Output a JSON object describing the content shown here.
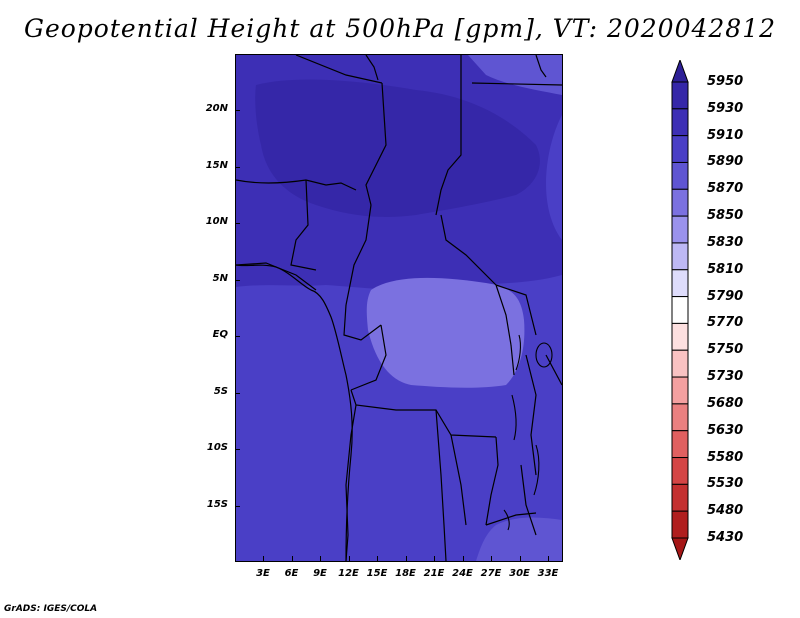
{
  "title": "Geopotential Height at 500hPa [gpm], VT: 2020042812",
  "footer": "GrADS: IGES/COLA",
  "y_axis_labels": [
    "20N",
    "15N",
    "10N",
    "5N",
    "EQ",
    "5S",
    "10S",
    "15S"
  ],
  "x_axis_labels": [
    "3E",
    "6E",
    "9E",
    "12E",
    "15E",
    "18E",
    "21E",
    "24E",
    "27E",
    "30E",
    "33E"
  ],
  "colorbar": {
    "levels": [
      "5950",
      "5930",
      "5910",
      "5890",
      "5870",
      "5850",
      "5830",
      "5810",
      "5790",
      "5770",
      "5750",
      "5730",
      "5680",
      "5630",
      "5580",
      "5530",
      "5480",
      "5430"
    ],
    "colors": [
      "#2d1f96",
      "#3527a8",
      "#3d2fb5",
      "#4a3fc6",
      "#5f55d2",
      "#7b71e0",
      "#9a92ec",
      "#bdb8f4",
      "#dedcfb",
      "#ffffff",
      "#fde0e0",
      "#f9c2c2",
      "#f4a0a0",
      "#ea8080",
      "#e06060",
      "#d44545",
      "#c43030",
      "#b01e1e",
      "#a51616"
    ],
    "top_arrow_color": "#2d1f96",
    "bottom_arrow_color": "#a51616"
  },
  "map_colors": {
    "level_5890": "#4a3fc6",
    "level_5910": "#3d2fb5",
    "level_5930": "#3527a8",
    "level_5870": "#5f55d2",
    "level_5850": "#7b71e0",
    "boundary_line": "#000000"
  }
}
